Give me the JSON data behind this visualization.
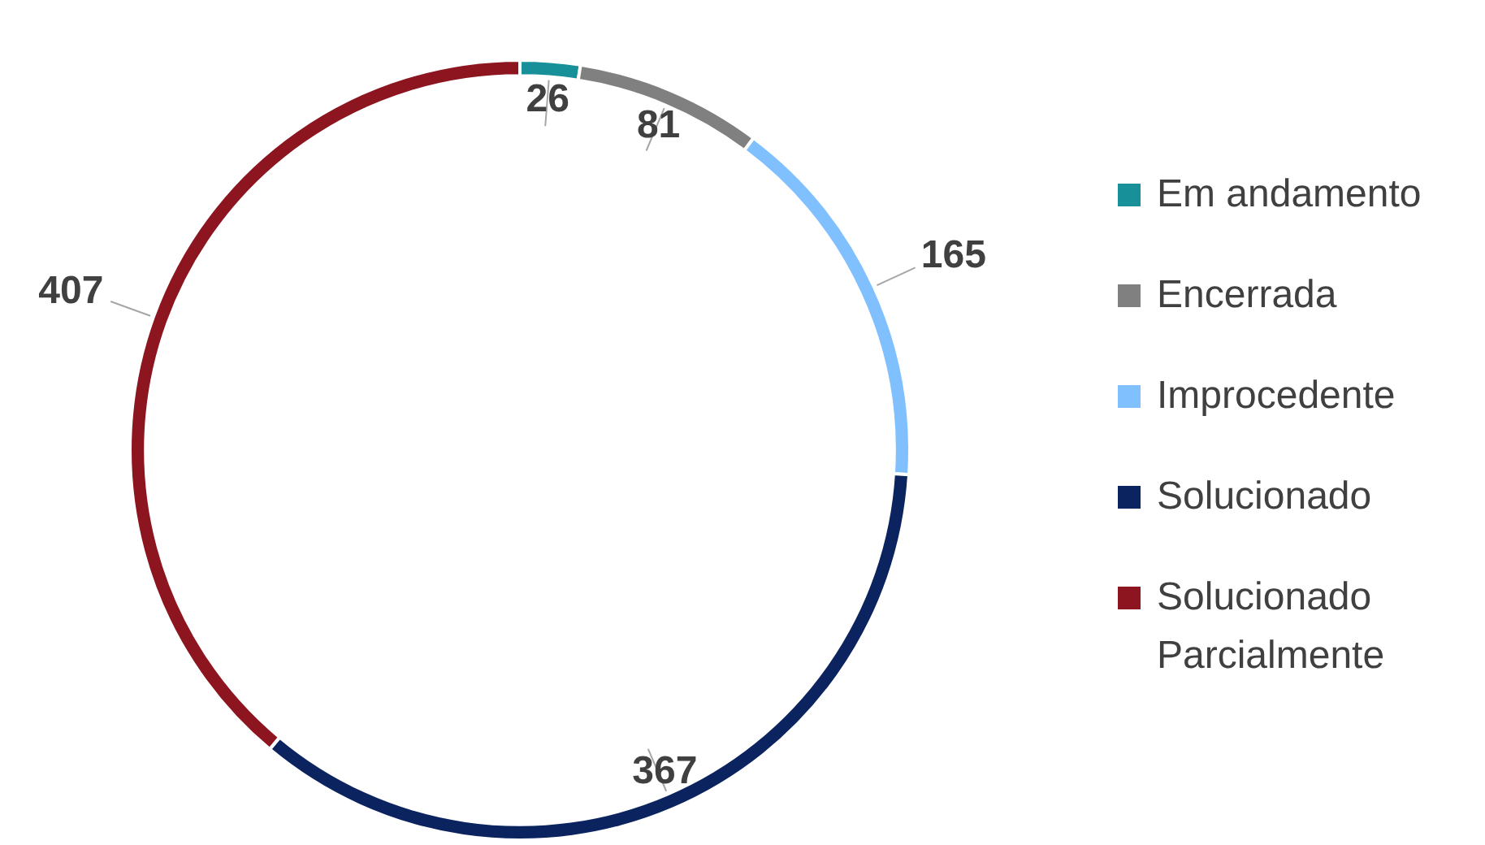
{
  "chart_data": {
    "type": "donut",
    "categories": [
      "Em andamento",
      "Encerrada",
      "Improcedente",
      "Solucionado",
      "Solucionado Parcialmente"
    ],
    "values": [
      26,
      81,
      165,
      367,
      407
    ],
    "colors": [
      "#17909a",
      "#808080",
      "#80c0ff",
      "#0b2460",
      "#8c1520"
    ],
    "data_labels": true,
    "legend": "right"
  }
}
